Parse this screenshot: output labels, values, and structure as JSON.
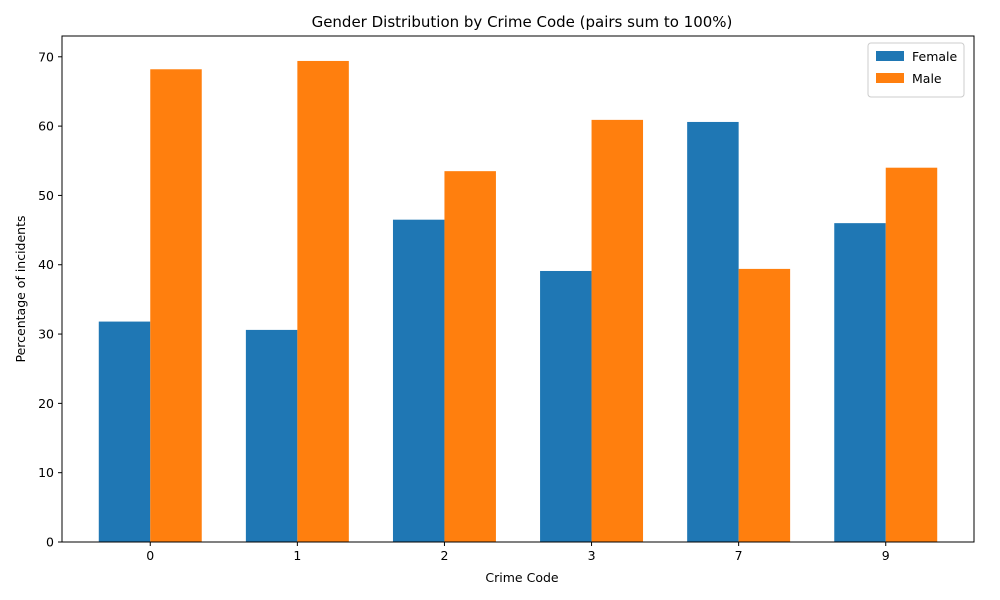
{
  "chart_data": {
    "type": "bar",
    "title": "Gender Distribution by Crime Code (pairs sum to 100%)",
    "xlabel": "Crime Code",
    "ylabel": "Percentage of incidents",
    "categories": [
      "0",
      "1",
      "2",
      "3",
      "7",
      "9"
    ],
    "series": [
      {
        "name": "Female",
        "color": "#1f77b4",
        "values": [
          31.8,
          30.6,
          46.5,
          39.1,
          60.6,
          46.0
        ]
      },
      {
        "name": "Male",
        "color": "#ff7f0e",
        "values": [
          68.2,
          69.4,
          53.5,
          60.9,
          39.4,
          54.0
        ]
      }
    ],
    "ylim": [
      0,
      73
    ],
    "yticks": [
      0,
      10,
      20,
      30,
      40,
      50,
      60,
      70
    ],
    "legend_position": "top-right",
    "grid": false
  }
}
